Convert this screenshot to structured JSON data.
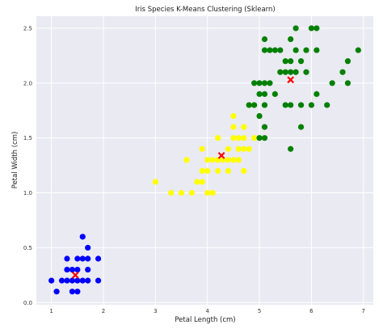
{
  "chart_data": {
    "type": "scatter",
    "title": "Iris Species K-Means Clustering (Sklearn)",
    "xlabel": "Petal Length (cm)",
    "ylabel": "Petal Width (cm)",
    "xlim": [
      0.71,
      7.19
    ],
    "ylim": [
      -0.02,
      2.61
    ],
    "x_ticks": [
      1,
      2,
      3,
      4,
      5,
      6,
      7
    ],
    "y_ticks": [
      0.0,
      0.5,
      1.0,
      1.5,
      2.0,
      2.5
    ],
    "grid": true,
    "background": "#eaeaf2",
    "series": [
      {
        "color": "#0000ff",
        "points": [
          [
            1.0,
            0.2
          ],
          [
            1.1,
            0.1
          ],
          [
            1.2,
            0.2
          ],
          [
            1.3,
            0.2
          ],
          [
            1.3,
            0.3
          ],
          [
            1.3,
            0.4
          ],
          [
            1.4,
            0.1
          ],
          [
            1.4,
            0.2
          ],
          [
            1.4,
            0.3
          ],
          [
            1.5,
            0.1
          ],
          [
            1.5,
            0.2
          ],
          [
            1.5,
            0.3
          ],
          [
            1.5,
            0.4
          ],
          [
            1.6,
            0.2
          ],
          [
            1.6,
            0.4
          ],
          [
            1.6,
            0.6
          ],
          [
            1.7,
            0.2
          ],
          [
            1.7,
            0.3
          ],
          [
            1.7,
            0.4
          ],
          [
            1.7,
            0.5
          ],
          [
            1.9,
            0.2
          ],
          [
            1.9,
            0.4
          ]
        ]
      },
      {
        "color": "#ffff00",
        "points": [
          [
            3.0,
            1.1
          ],
          [
            3.3,
            1.0
          ],
          [
            3.5,
            1.0
          ],
          [
            3.6,
            1.3
          ],
          [
            3.7,
            1.0
          ],
          [
            3.8,
            1.1
          ],
          [
            3.9,
            1.1
          ],
          [
            3.9,
            1.2
          ],
          [
            3.9,
            1.4
          ],
          [
            4.0,
            1.0
          ],
          [
            4.0,
            1.2
          ],
          [
            4.0,
            1.3
          ],
          [
            4.1,
            1.0
          ],
          [
            4.1,
            1.3
          ],
          [
            4.2,
            1.2
          ],
          [
            4.2,
            1.3
          ],
          [
            4.2,
            1.5
          ],
          [
            4.3,
            1.3
          ],
          [
            4.4,
            1.2
          ],
          [
            4.4,
            1.3
          ],
          [
            4.4,
            1.4
          ],
          [
            4.5,
            1.3
          ],
          [
            4.5,
            1.5
          ],
          [
            4.5,
            1.7
          ],
          [
            4.5,
            1.6
          ],
          [
            4.6,
            1.3
          ],
          [
            4.6,
            1.4
          ],
          [
            4.6,
            1.5
          ],
          [
            4.7,
            1.2
          ],
          [
            4.7,
            1.4
          ],
          [
            4.7,
            1.5
          ],
          [
            4.7,
            1.6
          ],
          [
            4.8,
            1.4
          ],
          [
            4.8,
            1.8
          ],
          [
            4.9,
            1.5
          ],
          [
            5.0,
            1.5
          ]
        ]
      },
      {
        "color": "#008000",
        "points": [
          [
            4.8,
            1.8
          ],
          [
            4.9,
            1.8
          ],
          [
            4.9,
            2.0
          ],
          [
            5.0,
            1.5
          ],
          [
            5.0,
            1.7
          ],
          [
            5.0,
            1.9
          ],
          [
            5.0,
            2.0
          ],
          [
            5.1,
            1.5
          ],
          [
            5.1,
            1.6
          ],
          [
            5.1,
            1.8
          ],
          [
            5.1,
            1.9
          ],
          [
            5.1,
            2.0
          ],
          [
            5.1,
            2.3
          ],
          [
            5.1,
            2.4
          ],
          [
            5.2,
            2.0
          ],
          [
            5.2,
            2.3
          ],
          [
            5.3,
            1.9
          ],
          [
            5.3,
            2.3
          ],
          [
            5.4,
            2.1
          ],
          [
            5.4,
            2.3
          ],
          [
            5.5,
            1.8
          ],
          [
            5.5,
            2.1
          ],
          [
            5.5,
            2.2
          ],
          [
            5.6,
            1.4
          ],
          [
            5.6,
            1.8
          ],
          [
            5.6,
            2.1
          ],
          [
            5.6,
            2.2
          ],
          [
            5.6,
            2.4
          ],
          [
            5.7,
            2.1
          ],
          [
            5.7,
            2.3
          ],
          [
            5.7,
            2.5
          ],
          [
            5.8,
            1.6
          ],
          [
            5.8,
            1.8
          ],
          [
            5.8,
            2.2
          ],
          [
            5.9,
            2.1
          ],
          [
            5.9,
            2.3
          ],
          [
            6.0,
            1.8
          ],
          [
            6.0,
            2.5
          ],
          [
            6.1,
            1.9
          ],
          [
            6.1,
            2.3
          ],
          [
            6.1,
            2.5
          ],
          [
            6.3,
            1.8
          ],
          [
            6.4,
            2.0
          ],
          [
            6.6,
            2.1
          ],
          [
            6.7,
            2.0
          ],
          [
            6.7,
            2.2
          ],
          [
            6.9,
            2.3
          ]
        ]
      }
    ],
    "centroids": [
      [
        1.46,
        0.25
      ],
      [
        4.27,
        1.34
      ],
      [
        5.6,
        2.03
      ]
    ],
    "centroid_color": "#ff0000"
  }
}
